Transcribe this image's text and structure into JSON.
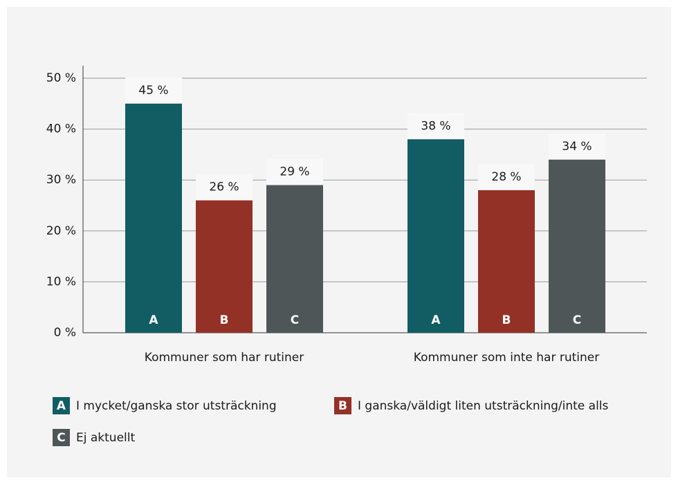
{
  "chart_data": {
    "type": "bar",
    "categories": [
      "Kommuner som har rutiner",
      "Kommuner som inte har rutiner"
    ],
    "series": [
      {
        "name": "I mycket/ganska stor utsträckning",
        "key": "A",
        "color": "#115d63",
        "values": [
          45,
          38
        ],
        "value_labels": [
          "45 %",
          "38 %"
        ]
      },
      {
        "name": "I ganska/väldigt liten utsträckning/inte alls",
        "key": "B",
        "color": "#943126",
        "values": [
          26,
          28
        ],
        "value_labels": [
          "26 %",
          "28 %"
        ]
      },
      {
        "name": "Ej aktuellt",
        "key": "C",
        "color": "#4e5658",
        "values": [
          29,
          34
        ],
        "value_labels": [
          "29 %",
          "34 %"
        ]
      }
    ],
    "ylim": [
      0,
      50
    ],
    "yticks": [
      {
        "value": 0,
        "label": "0 %"
      },
      {
        "value": 10,
        "label": "10 %"
      },
      {
        "value": 20,
        "label": "20 %"
      },
      {
        "value": 30,
        "label": "30 %"
      },
      {
        "value": 40,
        "label": "40 %"
      },
      {
        "value": 50,
        "label": "50 %"
      }
    ],
    "grid": true
  }
}
